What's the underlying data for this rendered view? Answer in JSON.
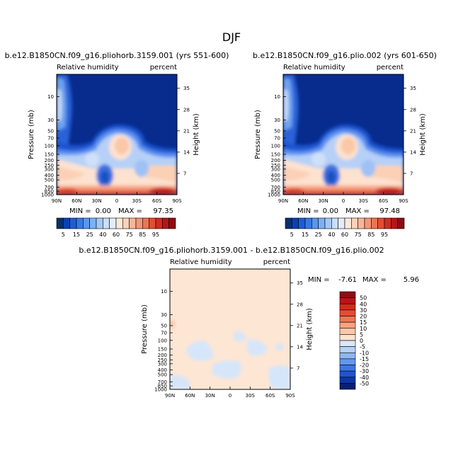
{
  "page_title": "DJF",
  "chart_data": [
    {
      "type": "heatmap",
      "title": "b.e12.B1850CN.f09_g16.pliohorb.3159.001 (yrs 551-600)",
      "left_label": "Relative humidity",
      "right_label": "percent",
      "ylabel": "Pressure (mb)",
      "y2label": "Height (km)",
      "x_ticks": [
        "90N",
        "60N",
        "30N",
        "0",
        "30S",
        "60S",
        "90S"
      ],
      "y_ticks": [
        "10",
        "30",
        "50",
        "70",
        "100",
        "150",
        "200",
        "250",
        "300",
        "400",
        "500",
        "700",
        "850",
        "1000"
      ],
      "y2_ticks": [
        "35",
        "28",
        "21",
        "14",
        "7"
      ],
      "stats": {
        "min_label": "MIN =",
        "min": "0.00",
        "max_label": "MAX =",
        "max": "97.35"
      }
    },
    {
      "type": "heatmap",
      "title": "b.e12.B1850CN.f09_g16.plio.002 (yrs 601-650)",
      "left_label": "Relative humidity",
      "right_label": "percent",
      "ylabel": "Pressure (mb)",
      "y2label": "Height (km)",
      "x_ticks": [
        "90N",
        "60N",
        "30N",
        "0",
        "30S",
        "60S",
        "90S"
      ],
      "y_ticks": [
        "10",
        "30",
        "50",
        "70",
        "100",
        "150",
        "200",
        "250",
        "300",
        "400",
        "500",
        "700",
        "850",
        "1000"
      ],
      "y2_ticks": [
        "35",
        "28",
        "21",
        "14",
        "7"
      ],
      "stats": {
        "min_label": "MIN =",
        "min": "0.00",
        "max_label": "MAX =",
        "max": "97.48"
      }
    },
    {
      "type": "heatmap",
      "title": "b.e12.B1850CN.f09_g16.pliohorb.3159.001 - b.e12.B1850CN.f09_g16.plio.002",
      "left_label": "Relative humidity",
      "right_label": "percent",
      "ylabel": "Pressure (mb)",
      "y2label": "Height (km)",
      "x_ticks": [
        "90N",
        "60N",
        "30N",
        "0",
        "30S",
        "60S",
        "90S"
      ],
      "y_ticks": [
        "10",
        "30",
        "50",
        "70",
        "100",
        "150",
        "200",
        "250",
        "300",
        "400",
        "500",
        "700",
        "850",
        "1000"
      ],
      "y2_ticks": [
        "35",
        "28",
        "21",
        "14",
        "7"
      ],
      "stats": {
        "min_label": "MIN =",
        "min": "-7.61",
        "max_label": "MAX =",
        "max": "5.96"
      }
    }
  ],
  "colorbar_top": {
    "labels": [
      "5",
      "15",
      "25",
      "40",
      "60",
      "75",
      "85",
      "95"
    ],
    "colors": [
      "#08306b",
      "#0a3fb8",
      "#1f5bd8",
      "#3878e8",
      "#5a96f0",
      "#7db0f5",
      "#a3c8f8",
      "#c9defa",
      "#e3edfa",
      "#fde8d8",
      "#fcd2b8",
      "#f9b699",
      "#f59577",
      "#ef7355",
      "#e54c33",
      "#d52a1d",
      "#b8141a",
      "#8f0c12"
    ]
  },
  "colorbar_diff": {
    "labels": [
      "50",
      "40",
      "30",
      "20",
      "15",
      "10",
      "5",
      "0",
      "-5",
      "-10",
      "-15",
      "-20",
      "-30",
      "-40",
      "-50"
    ],
    "colors": [
      "#8f0c12",
      "#b8141a",
      "#d52a1d",
      "#e54c33",
      "#f07656",
      "#f8a382",
      "#fbc8a8",
      "#fde3cf",
      "#dce8f9",
      "#b7d1f6",
      "#8fb6f2",
      "#6797ec",
      "#3e76e3",
      "#1f55d0",
      "#0c36a8",
      "#08206e"
    ]
  }
}
